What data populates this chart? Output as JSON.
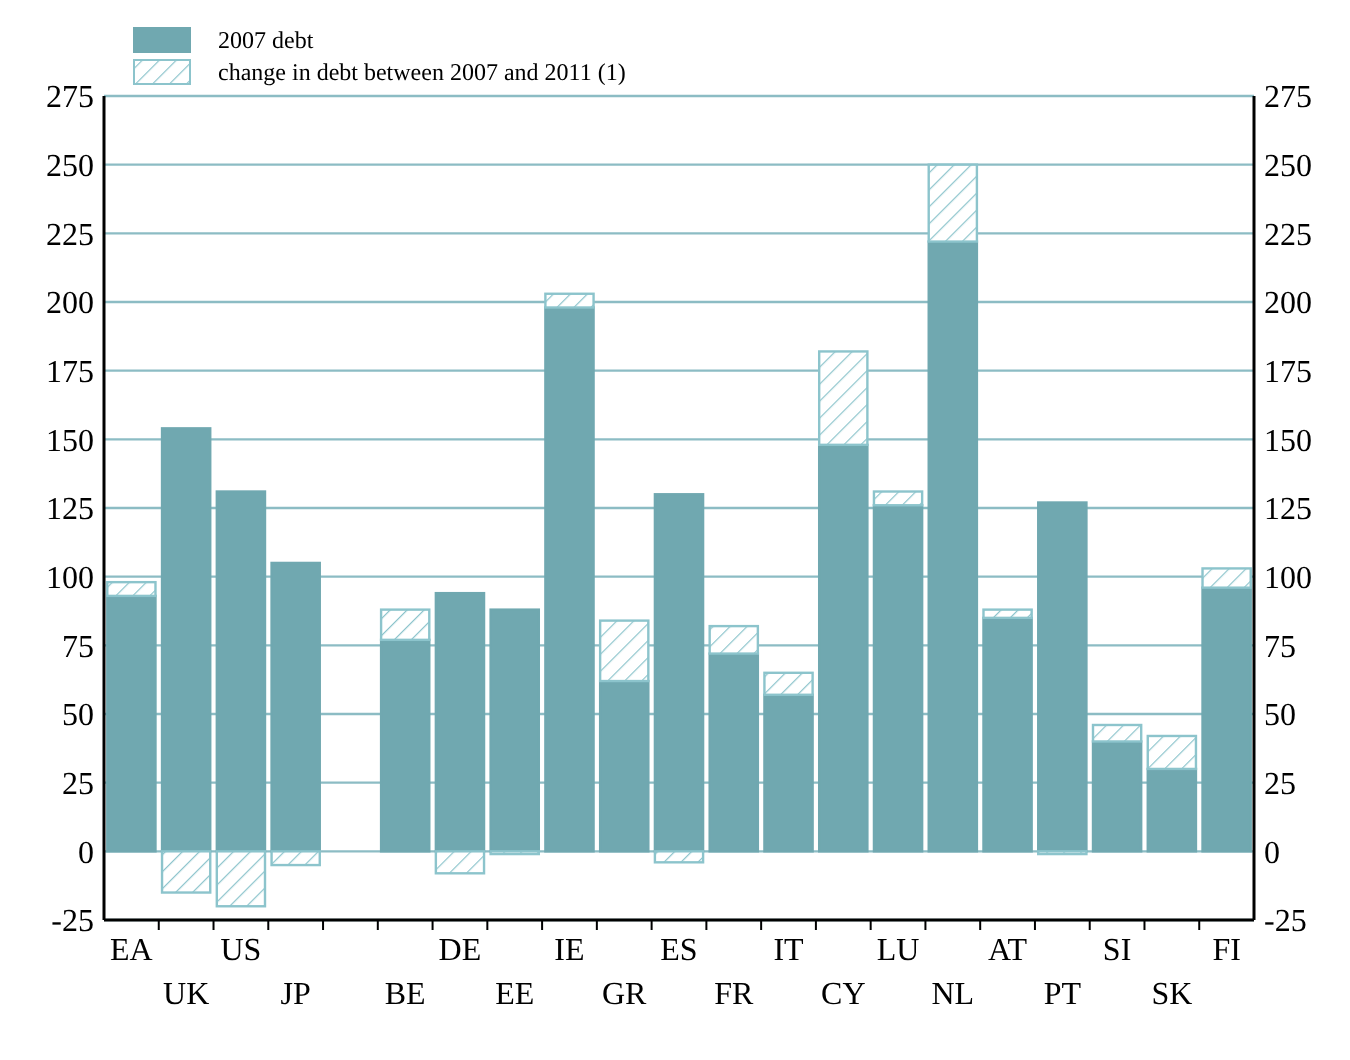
{
  "chart_data": {
    "type": "bar",
    "stacked": true,
    "categories": [
      "EA",
      "UK",
      "US",
      "JP",
      null,
      "BE",
      "DE",
      "EE",
      "IE",
      "GR",
      "ES",
      "FR",
      "IT",
      "CY",
      "LU",
      "NL",
      "AT",
      "PT",
      "SI",
      "SK",
      "FI"
    ],
    "series": [
      {
        "name": "2007 debt",
        "color": "#70a8b0",
        "values": [
          93,
          154,
          131,
          105,
          null,
          77,
          94,
          88,
          198,
          62,
          130,
          72,
          57,
          148,
          126,
          222,
          85,
          127,
          40,
          30,
          96
        ]
      },
      {
        "name": "change in debt between 2007 and 2011 (1)",
        "color": "#8cc4cc",
        "values": [
          5,
          -15,
          -20,
          -5,
          null,
          11,
          -8,
          -1,
          5,
          22,
          -4,
          10,
          8,
          34,
          5,
          28,
          3,
          -1,
          6,
          12,
          7
        ]
      }
    ],
    "ylim": [
      -25,
      275
    ],
    "yticks": [
      -25,
      0,
      25,
      50,
      75,
      100,
      125,
      150,
      175,
      200,
      225,
      250,
      275
    ],
    "y2lim": [
      -25,
      275
    ],
    "y2ticks": [
      -25,
      0,
      25,
      50,
      75,
      100,
      125,
      150,
      175,
      200,
      225,
      250,
      275
    ],
    "grid": "y",
    "legend": "top left"
  }
}
